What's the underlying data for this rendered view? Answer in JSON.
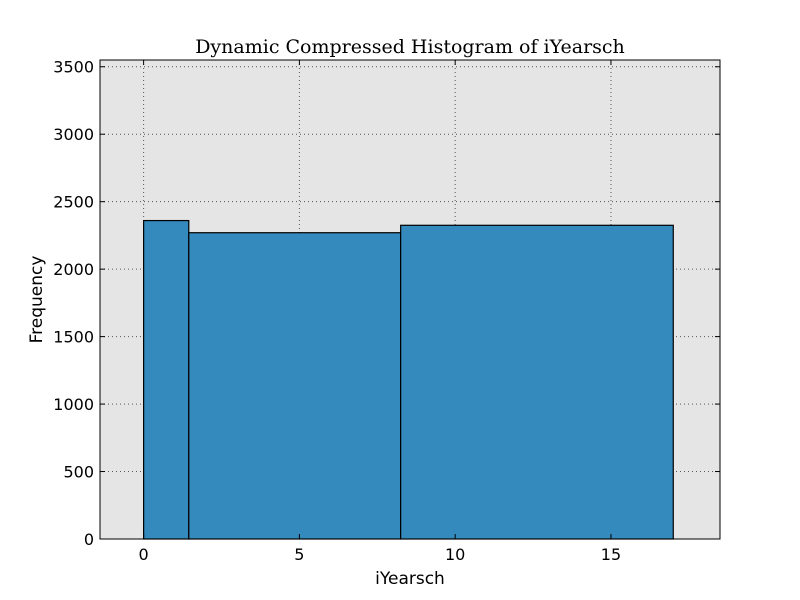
{
  "chart_data": {
    "type": "bar",
    "title": "Dynamic Compressed Histogram of iYearsch",
    "xlabel": "iYearsch",
    "ylabel": "Frequency",
    "xlim": [
      -1.4,
      18.5
    ],
    "ylim": [
      0,
      3550
    ],
    "xticks": [
      0,
      5,
      10,
      15
    ],
    "yticks": [
      0,
      500,
      1000,
      1500,
      2000,
      2500,
      3000,
      3500
    ],
    "bins": [
      {
        "x_start": 0.0,
        "x_end": 1.45,
        "value": 2360
      },
      {
        "x_start": 1.45,
        "x_end": 8.25,
        "value": 2270
      },
      {
        "x_start": 8.25,
        "x_end": 17.0,
        "value": 2325
      }
    ],
    "grid": true,
    "legend": "none",
    "colors": {
      "bar_fill": "#348abd",
      "bar_edge": "#000000",
      "plot_background": "#e5e5e5",
      "grid": "#555555"
    }
  }
}
